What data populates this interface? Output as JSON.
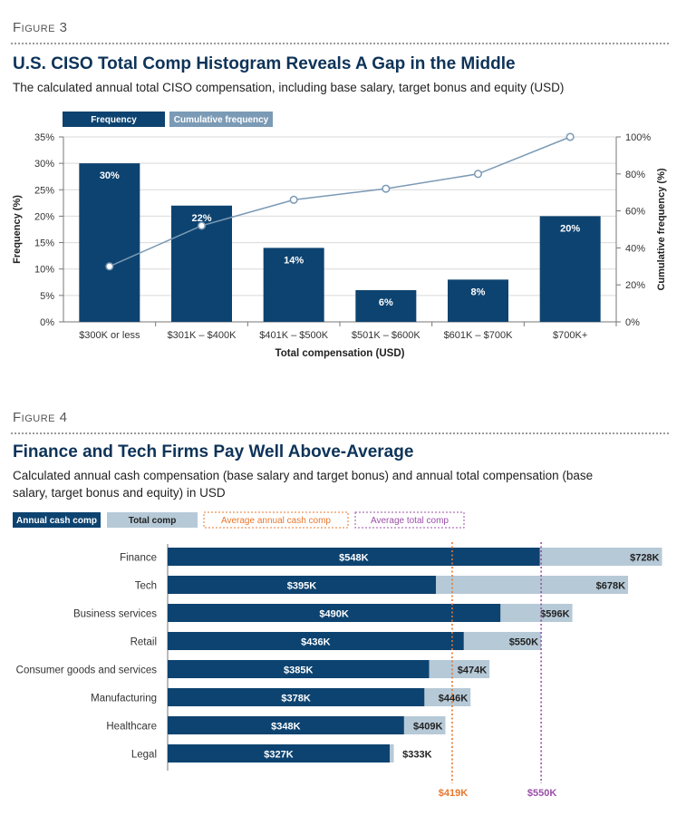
{
  "figure3": {
    "label": "Figure 3",
    "title": "U.S. CISO Total Comp Histogram Reveals A Gap in the Middle",
    "subtitle": "The calculated annual total CISO compensation, including base salary, target bonus and equity (USD)"
  },
  "figure4": {
    "label": "Figure 4",
    "title": "Finance and Tech Firms Pay Well Above-Average",
    "subtitle": "Calculated annual cash compensation (base salary and target bonus) and annual total compensation (base salary, target bonus and equity) in USD"
  },
  "colors": {
    "dark_blue": "#0d4370",
    "light_blue": "#b6c9d7",
    "line_blue": "#7b9ab5",
    "orange": "#e8772e",
    "purple": "#9b4fa8",
    "grid": "#d9d9d9"
  },
  "chart_data": [
    {
      "type": "bar",
      "xlabel": "Total compensation (USD)",
      "ylabel": "Frequency (%)",
      "y2label": "Cumulative frequency (%)",
      "categories": [
        "$300K or less",
        "$301K – $400K",
        "$401K – $500K",
        "$501K – $600K",
        "$601K – $700K",
        "$700K+"
      ],
      "series": [
        {
          "name": "Frequency",
          "kind": "bar",
          "axis": "left",
          "values": [
            30,
            22,
            14,
            6,
            8,
            20
          ],
          "labels": [
            "30%",
            "22%",
            "14%",
            "6%",
            "8%",
            "20%"
          ]
        },
        {
          "name": "Cumulative frequency",
          "kind": "line",
          "axis": "right",
          "values": [
            30,
            52,
            66,
            72,
            80,
            100
          ]
        }
      ],
      "ylim": [
        0,
        35
      ],
      "yticks": [
        "0%",
        "5%",
        "10%",
        "15%",
        "20%",
        "25%",
        "30%",
        "35%"
      ],
      "y2lim": [
        0,
        100
      ],
      "y2ticks": [
        "0%",
        "20%",
        "40%",
        "60%",
        "80%",
        "100%"
      ],
      "grid": true,
      "legend": "top-left"
    },
    {
      "type": "bar",
      "orientation": "horizontal",
      "categories": [
        "Finance",
        "Tech",
        "Business services",
        "Retail",
        "Consumer goods and services",
        "Manufacturing",
        "Healthcare",
        "Legal"
      ],
      "series": [
        {
          "name": "Annual cash comp",
          "values": [
            548,
            395,
            490,
            436,
            385,
            378,
            348,
            327
          ],
          "labels": [
            "$548K",
            "$395K",
            "$490K",
            "$436K",
            "$385K",
            "$378K",
            "$348K",
            "$327K"
          ]
        },
        {
          "name": "Total comp",
          "values": [
            728,
            678,
            596,
            550,
            474,
            446,
            409,
            333
          ],
          "labels": [
            "$728K",
            "$678K",
            "$596K",
            "$550K",
            "$474K",
            "$446K",
            "$409K",
            "$333K"
          ]
        }
      ],
      "reference_lines": [
        {
          "name": "Average annual cash comp",
          "value": 419,
          "label": "$419K"
        },
        {
          "name": "Average total comp",
          "value": 550,
          "label": "$550K"
        }
      ],
      "xlim": [
        0,
        730
      ],
      "legend": "top-left"
    }
  ]
}
